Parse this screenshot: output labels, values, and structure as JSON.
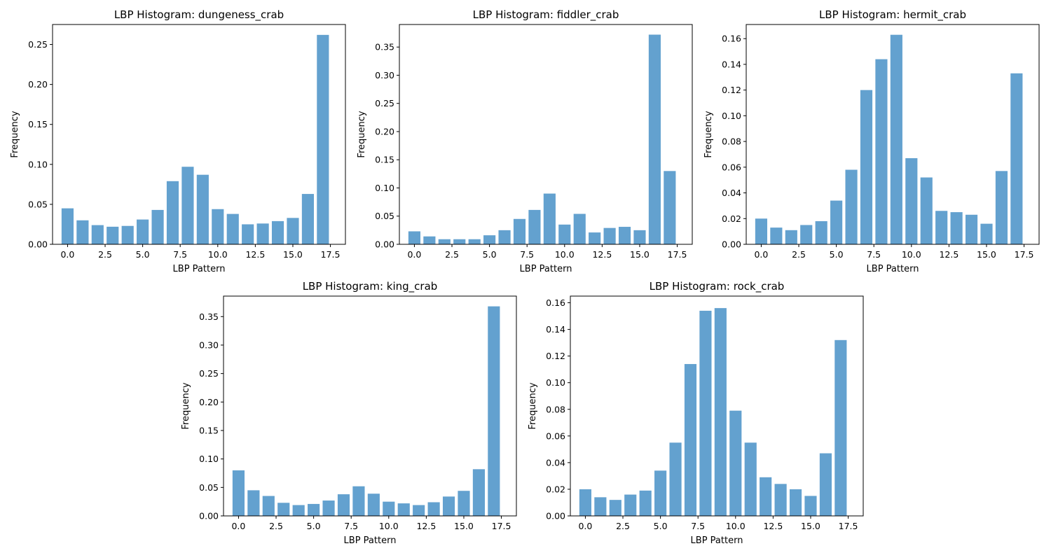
{
  "colors": {
    "bar": "#63a1cf",
    "axes": "#000000",
    "background": "#ffffff"
  },
  "x_label": "LBP Pattern",
  "y_label": "Frequency",
  "x_ticks": [
    "0.0",
    "2.5",
    "5.0",
    "7.5",
    "10.0",
    "12.5",
    "15.0",
    "17.5"
  ],
  "chart_data": [
    {
      "type": "bar",
      "title": "LBP Histogram: dungeness_crab",
      "xlabel": "LBP Pattern",
      "ylabel": "Frequency",
      "xlim": [
        -1,
        18.5
      ],
      "ylim": [
        0,
        0.275
      ],
      "y_ticks": [
        "0.00",
        "0.05",
        "0.10",
        "0.15",
        "0.20",
        "0.25"
      ],
      "x": [
        0,
        1,
        2,
        3,
        4,
        5,
        6,
        7,
        8,
        9,
        10,
        11,
        12,
        13,
        14,
        15,
        16,
        17
      ],
      "values": [
        0.045,
        0.03,
        0.024,
        0.022,
        0.023,
        0.031,
        0.043,
        0.079,
        0.097,
        0.087,
        0.044,
        0.038,
        0.025,
        0.026,
        0.029,
        0.033,
        0.063,
        0.262
      ]
    },
    {
      "type": "bar",
      "title": "LBP Histogram: fiddler_crab",
      "xlabel": "LBP Pattern",
      "ylabel": "Frequency",
      "xlim": [
        -1,
        18.5
      ],
      "ylim": [
        0,
        0.39
      ],
      "y_ticks": [
        "0.00",
        "0.05",
        "0.10",
        "0.15",
        "0.20",
        "0.25",
        "0.30",
        "0.35"
      ],
      "x": [
        0,
        1,
        2,
        3,
        4,
        5,
        6,
        7,
        8,
        9,
        10,
        11,
        12,
        13,
        14,
        15,
        16,
        17
      ],
      "values": [
        0.023,
        0.014,
        0.009,
        0.009,
        0.009,
        0.016,
        0.025,
        0.045,
        0.061,
        0.09,
        0.035,
        0.054,
        0.021,
        0.029,
        0.031,
        0.025,
        0.372,
        0.13
      ]
    },
    {
      "type": "bar",
      "title": "LBP Histogram: hermit_crab",
      "xlabel": "LBP Pattern",
      "ylabel": "Frequency",
      "xlim": [
        -1,
        18.5
      ],
      "ylim": [
        0,
        0.171
      ],
      "y_ticks": [
        "0.00",
        "0.02",
        "0.04",
        "0.06",
        "0.08",
        "0.10",
        "0.12",
        "0.14",
        "0.16"
      ],
      "x": [
        0,
        1,
        2,
        3,
        4,
        5,
        6,
        7,
        8,
        9,
        10,
        11,
        12,
        13,
        14,
        15,
        16,
        17
      ],
      "values": [
        0.02,
        0.013,
        0.011,
        0.015,
        0.018,
        0.034,
        0.058,
        0.12,
        0.144,
        0.163,
        0.067,
        0.052,
        0.026,
        0.025,
        0.023,
        0.016,
        0.057,
        0.133
      ]
    },
    {
      "type": "bar",
      "title": "LBP Histogram: king_crab",
      "xlabel": "LBP Pattern",
      "ylabel": "Frequency",
      "xlim": [
        -1,
        18.5
      ],
      "ylim": [
        0,
        0.386
      ],
      "y_ticks": [
        "0.00",
        "0.05",
        "0.10",
        "0.15",
        "0.20",
        "0.25",
        "0.30",
        "0.35"
      ],
      "x": [
        0,
        1,
        2,
        3,
        4,
        5,
        6,
        7,
        8,
        9,
        10,
        11,
        12,
        13,
        14,
        15,
        16,
        17
      ],
      "values": [
        0.08,
        0.045,
        0.035,
        0.023,
        0.019,
        0.021,
        0.027,
        0.038,
        0.052,
        0.039,
        0.025,
        0.022,
        0.019,
        0.024,
        0.034,
        0.044,
        0.082,
        0.368
      ]
    },
    {
      "type": "bar",
      "title": "LBP Histogram: rock_crab",
      "xlabel": "LBP Pattern",
      "ylabel": "Frequency",
      "xlim": [
        -1,
        18.5
      ],
      "ylim": [
        0,
        0.165
      ],
      "y_ticks": [
        "0.00",
        "0.02",
        "0.04",
        "0.06",
        "0.08",
        "0.10",
        "0.12",
        "0.14",
        "0.16"
      ],
      "x": [
        0,
        1,
        2,
        3,
        4,
        5,
        6,
        7,
        8,
        9,
        10,
        11,
        12,
        13,
        14,
        15,
        16,
        17
      ],
      "values": [
        0.02,
        0.014,
        0.012,
        0.016,
        0.019,
        0.034,
        0.055,
        0.114,
        0.154,
        0.156,
        0.079,
        0.055,
        0.029,
        0.024,
        0.02,
        0.015,
        0.047,
        0.132
      ]
    }
  ]
}
